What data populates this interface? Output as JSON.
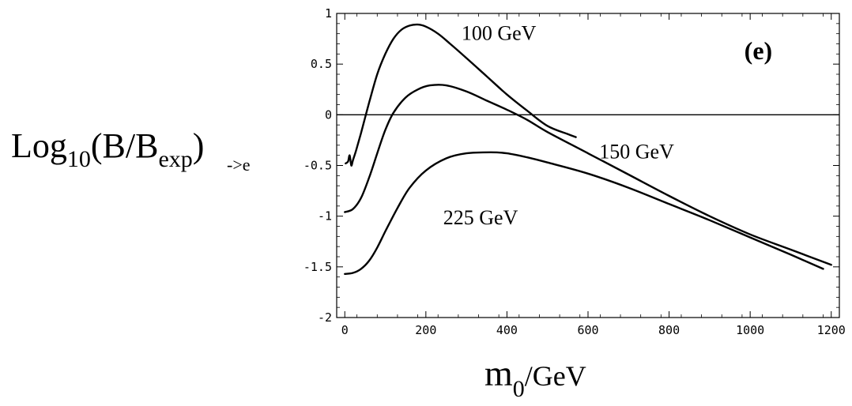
{
  "chart_data": {
    "type": "line",
    "panel_label": "(e)",
    "xlabel": {
      "main": "m",
      "sub": "0",
      "tail": "/GeV"
    },
    "ylabel": {
      "prefix": "Log",
      "prefix_sub": "10",
      "middle": "(B/B",
      "middle_sub": "exp",
      "close": ")",
      "suffix": "->e"
    },
    "xlim": [
      -20,
      1220
    ],
    "ylim": [
      -2,
      1
    ],
    "xticks": [
      0,
      200,
      400,
      600,
      800,
      1000,
      1200
    ],
    "yticks": [
      1,
      0.5,
      0,
      -0.5,
      -1,
      -1.5,
      -2
    ],
    "ytick_labels": [
      "1",
      "0.5",
      "0",
      "-0.5",
      "-1",
      "-1.5",
      "-2"
    ],
    "grid": false,
    "zero_line": true,
    "series": [
      {
        "name": "100 GeV",
        "x": [
          2,
          8,
          12,
          16,
          20,
          28,
          40,
          60,
          80,
          100,
          120,
          140,
          160,
          180,
          200,
          230,
          260,
          300,
          350,
          400,
          450,
          500,
          550,
          570
        ],
        "y": [
          -0.48,
          -0.46,
          -0.4,
          -0.5,
          -0.45,
          -0.35,
          -0.18,
          0.12,
          0.4,
          0.6,
          0.75,
          0.84,
          0.88,
          0.89,
          0.87,
          0.8,
          0.7,
          0.56,
          0.38,
          0.2,
          0.04,
          -0.11,
          -0.19,
          -0.22
        ]
      },
      {
        "name": "150 GeV",
        "x": [
          0,
          20,
          40,
          60,
          80,
          100,
          120,
          150,
          180,
          210,
          250,
          300,
          350,
          400,
          450,
          500,
          600,
          700,
          800,
          900,
          1000,
          1100,
          1200
        ],
        "y": [
          -0.96,
          -0.93,
          -0.82,
          -0.62,
          -0.38,
          -0.15,
          0.02,
          0.17,
          0.25,
          0.29,
          0.29,
          0.23,
          0.14,
          0.05,
          -0.05,
          -0.17,
          -0.38,
          -0.59,
          -0.8,
          -1.0,
          -1.18,
          -1.33,
          -1.48
        ]
      },
      {
        "name": "225 GeV",
        "x": [
          0,
          20,
          40,
          60,
          80,
          100,
          130,
          160,
          200,
          250,
          300,
          360,
          400,
          450,
          500,
          600,
          700,
          800,
          900,
          1000,
          1100,
          1180
        ],
        "y": [
          -1.57,
          -1.56,
          -1.52,
          -1.44,
          -1.31,
          -1.15,
          -0.92,
          -0.72,
          -0.55,
          -0.43,
          -0.38,
          -0.37,
          -0.38,
          -0.42,
          -0.47,
          -0.58,
          -0.72,
          -0.88,
          -1.04,
          -1.21,
          -1.38,
          -1.52
        ]
      }
    ],
    "annotations": [
      {
        "text": "100 GeV",
        "x": 380,
        "y": 0.74
      },
      {
        "text": "150 GeV",
        "x": 720,
        "y": -0.43
      },
      {
        "text": "225 GeV",
        "x": 335,
        "y": -1.08
      }
    ],
    "panel_label_pos": {
      "x": 1020,
      "y": 0.55
    }
  }
}
